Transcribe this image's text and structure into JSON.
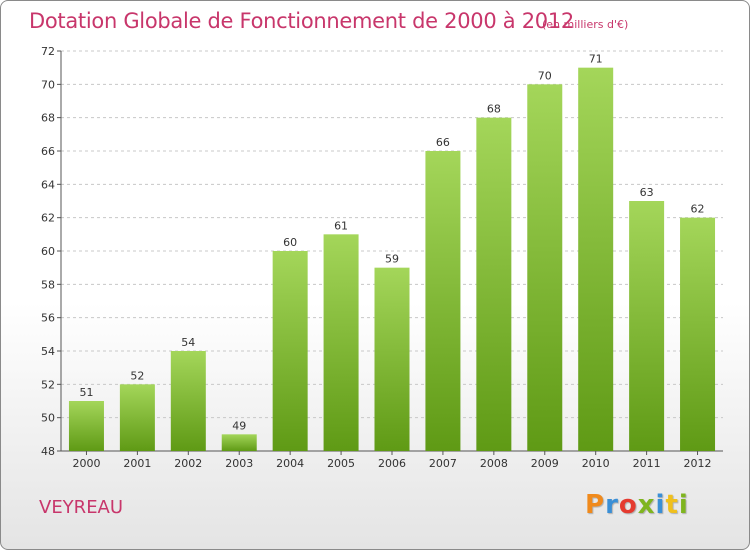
{
  "title": "Dotation Globale de Fonctionnement de 2000 à 2012",
  "subtitle": "(en milliers d'€)",
  "commune": "VEYREAU",
  "logo": {
    "letters": [
      "P",
      "r",
      "o",
      "x",
      "i",
      "t",
      "i"
    ],
    "colors": [
      "#f08a1c",
      "#3a8fd6",
      "#e53a2f",
      "#7fb51f",
      "#3a8fd6",
      "#f0c01c",
      "#7fb51f"
    ]
  },
  "colors": {
    "bar_top": "#a4d65a",
    "bar_bottom": "#5f9a15",
    "title": "#c8366b",
    "grid": "#c8c8c8"
  },
  "chart_data": {
    "type": "bar",
    "categories": [
      "2000",
      "2001",
      "2002",
      "2003",
      "2004",
      "2005",
      "2006",
      "2007",
      "2008",
      "2009",
      "2010",
      "2011",
      "2012"
    ],
    "values": [
      51,
      52,
      54,
      49,
      60,
      61,
      59,
      66,
      68,
      70,
      71,
      63,
      62
    ],
    "ylim": [
      48,
      72
    ],
    "yticks": [
      48,
      50,
      52,
      54,
      56,
      58,
      60,
      62,
      64,
      66,
      68,
      70,
      72
    ],
    "grid": true,
    "xlabel": "",
    "ylabel": ""
  }
}
